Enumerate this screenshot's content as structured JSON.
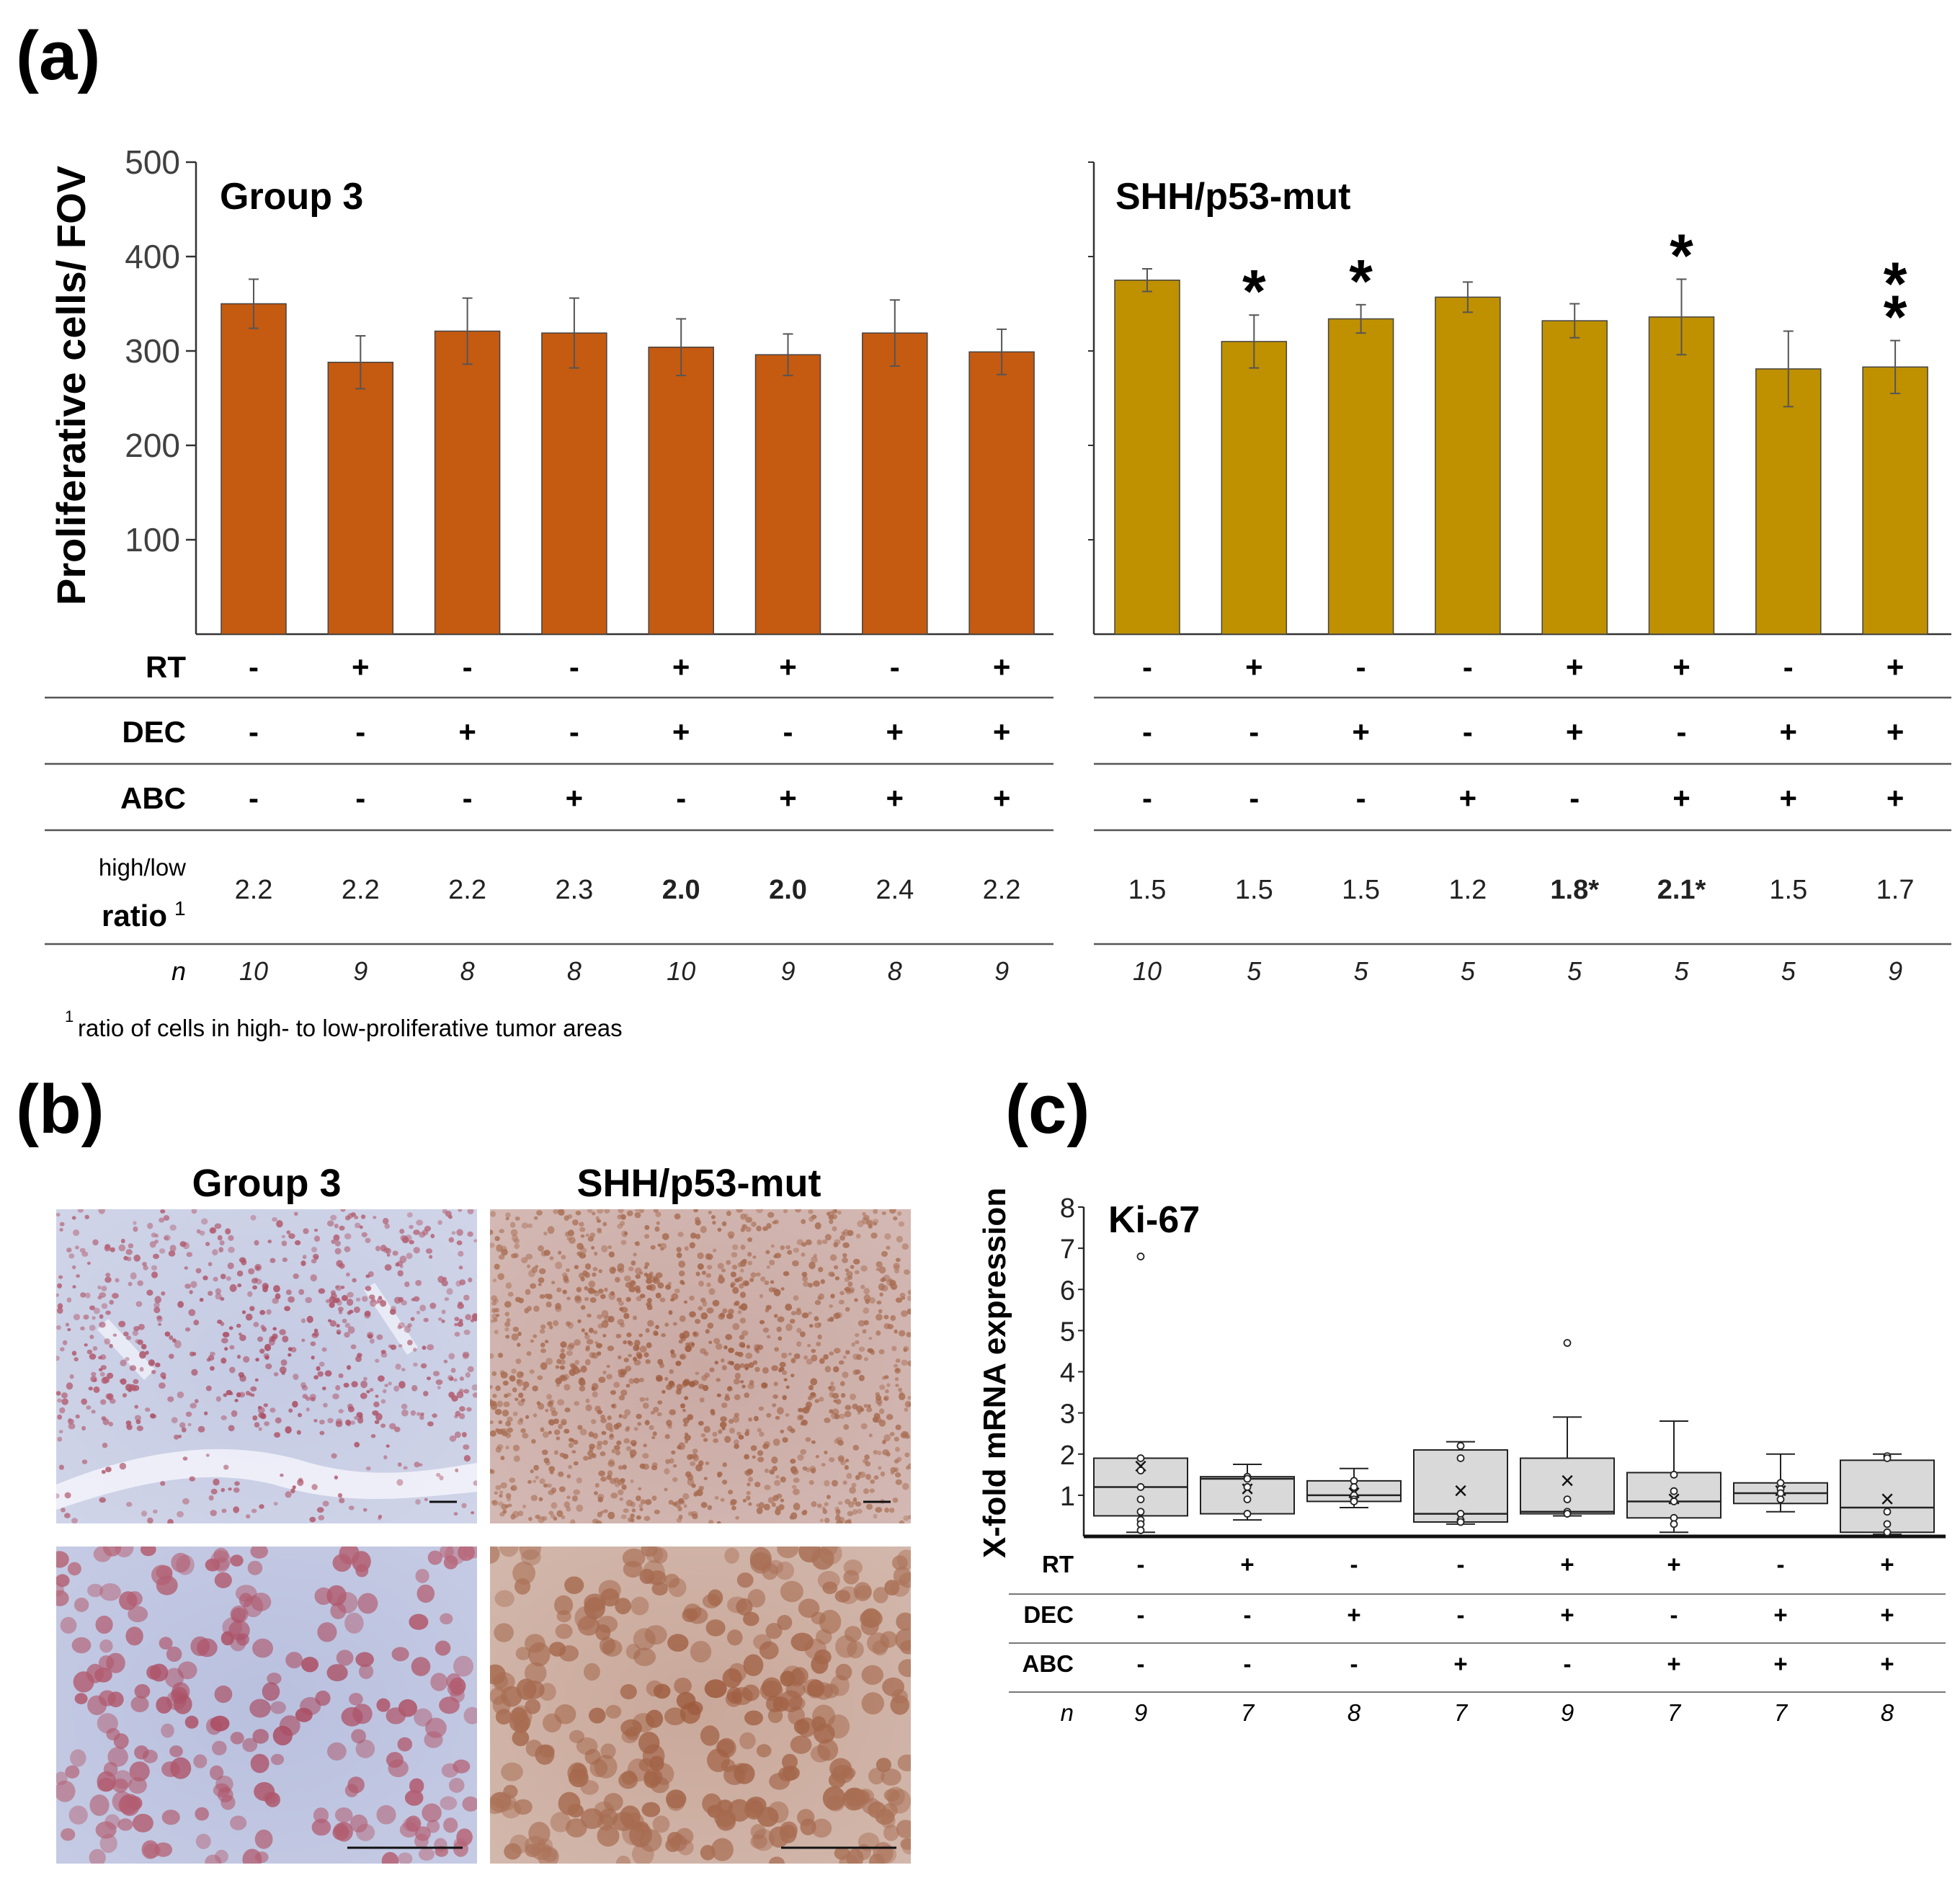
{
  "panels": {
    "a": {
      "label": "(a)",
      "ylabel": "Proliferative cells/ FOV",
      "row_labels": {
        "rt": "RT",
        "dec": "DEC",
        "abc": "ABC",
        "ratio_top": "high/low",
        "ratio_main": "ratio",
        "ratio_sup": "1",
        "n": "n"
      },
      "footnote_sup": "1",
      "footnote": "ratio of cells in high- to low-proliferative tumor areas"
    },
    "b": {
      "label": "(b)",
      "titles": [
        "Group 3",
        "SHH/p53-mut"
      ]
    },
    "c": {
      "label": "(c)",
      "row_labels": {
        "rt": "RT",
        "dec": "DEC",
        "abc": "ABC",
        "n": "n"
      }
    }
  },
  "colors": {
    "group3_bar": "#c55a11",
    "shh_bar": "#bf9000",
    "box_fill": "#d9d9d9",
    "tissue_blue": "#b7bfdd",
    "stain_red": "#a8485e",
    "stain_brown": "#9c5a3c"
  },
  "chart_data": [
    {
      "type": "bar",
      "title": "Group 3",
      "ylabel": "Proliferative cells/ FOV",
      "ylim": [
        0,
        500
      ],
      "yticks": [
        100,
        200,
        300,
        400,
        500
      ],
      "values": [
        350,
        288,
        321,
        319,
        304,
        296,
        319,
        299
      ],
      "errors": [
        26,
        28,
        35,
        37,
        30,
        22,
        35,
        24
      ],
      "significance": [
        "",
        "",
        "",
        "",
        "",
        "",
        "",
        ""
      ],
      "rt": [
        "-",
        "+",
        "-",
        "-",
        "+",
        "+",
        "-",
        "+"
      ],
      "dec": [
        "-",
        "-",
        "+",
        "-",
        "+",
        "-",
        "+",
        "+"
      ],
      "abc": [
        "-",
        "-",
        "-",
        "+",
        "-",
        "+",
        "+",
        "+"
      ],
      "ratio": [
        "2.2",
        "2.2",
        "2.2",
        "2.3",
        "2.0",
        "2.0",
        "2.4",
        "2.2"
      ],
      "ratio_bold": [
        false,
        false,
        false,
        false,
        true,
        true,
        false,
        false
      ],
      "n": [
        "10",
        "9",
        "8",
        "8",
        "10",
        "9",
        "8",
        "9"
      ]
    },
    {
      "type": "bar",
      "title": "SHH/p53-mut",
      "ylim": [
        0,
        500
      ],
      "values": [
        375,
        310,
        334,
        357,
        332,
        336,
        281,
        283
      ],
      "errors": [
        12,
        28,
        15,
        16,
        18,
        40,
        40,
        28
      ],
      "significance": [
        "",
        "*",
        "*",
        "",
        "",
        "*",
        "",
        "**"
      ],
      "rt": [
        "-",
        "+",
        "-",
        "-",
        "+",
        "+",
        "-",
        "+"
      ],
      "dec": [
        "-",
        "-",
        "+",
        "-",
        "+",
        "-",
        "+",
        "+"
      ],
      "abc": [
        "-",
        "-",
        "-",
        "+",
        "-",
        "+",
        "+",
        "+"
      ],
      "ratio": [
        "1.5",
        "1.5",
        "1.5",
        "1.2",
        "1.8*",
        "2.1*",
        "1.5",
        "1.7"
      ],
      "ratio_bold": [
        false,
        false,
        false,
        false,
        true,
        true,
        false,
        false
      ],
      "n": [
        "10",
        "5",
        "5",
        "5",
        "5",
        "5",
        "5",
        "9"
      ]
    },
    {
      "type": "box",
      "title": "Ki-67",
      "ylabel": "X-fold mRNA expression",
      "ylim": [
        0,
        8
      ],
      "yticks": [
        1,
        2,
        3,
        4,
        5,
        6,
        7,
        8
      ],
      "boxes": [
        {
          "q1": 0.5,
          "median": 1.2,
          "q3": 1.9,
          "mean": 1.7,
          "whisker_low": 0.1,
          "whisker_high": 1.9,
          "points": [
            6.8,
            1.9,
            1.6,
            1.2,
            0.9,
            0.6,
            0.4,
            0.3,
            0.15
          ]
        },
        {
          "q1": 0.55,
          "median": 1.4,
          "q3": 1.45,
          "mean": 1.15,
          "whisker_low": 0.4,
          "whisker_high": 1.75,
          "points": [
            1.45,
            1.4,
            1.2,
            0.9,
            0.55
          ]
        },
        {
          "q1": 0.85,
          "median": 1.0,
          "q3": 1.35,
          "mean": 1.05,
          "whisker_low": 0.7,
          "whisker_high": 1.65,
          "points": [
            1.35,
            1.2,
            1.0,
            0.9,
            0.85
          ]
        },
        {
          "q1": 0.35,
          "median": 0.55,
          "q3": 2.1,
          "mean": 1.1,
          "whisker_low": 0.3,
          "whisker_high": 2.3,
          "points": [
            2.2,
            1.9,
            0.55,
            0.4,
            0.35
          ]
        },
        {
          "q1": 0.55,
          "median": 0.6,
          "q3": 1.9,
          "mean": 1.35,
          "whisker_low": 0.5,
          "whisker_high": 2.9,
          "points": [
            4.7,
            0.9,
            0.6,
            0.55
          ]
        },
        {
          "q1": 0.45,
          "median": 0.85,
          "q3": 1.55,
          "mean": 0.9,
          "whisker_low": 0.1,
          "whisker_high": 2.8,
          "points": [
            1.5,
            1.1,
            0.85,
            0.45,
            0.3
          ]
        },
        {
          "q1": 0.8,
          "median": 1.05,
          "q3": 1.3,
          "mean": 1.1,
          "whisker_low": 0.6,
          "whisker_high": 2.0,
          "points": [
            1.3,
            1.15,
            1.05,
            0.9
          ]
        },
        {
          "q1": 0.1,
          "median": 0.7,
          "q3": 1.85,
          "mean": 0.9,
          "whisker_low": 0.05,
          "whisker_high": 2.0,
          "points": [
            1.95,
            1.9,
            0.6,
            0.3,
            0.1
          ]
        }
      ],
      "rt": [
        "-",
        "+",
        "-",
        "-",
        "+",
        "+",
        "-",
        "+"
      ],
      "dec": [
        "-",
        "-",
        "+",
        "-",
        "+",
        "-",
        "+",
        "+"
      ],
      "abc": [
        "-",
        "-",
        "-",
        "+",
        "-",
        "+",
        "+",
        "+"
      ],
      "n": [
        "9",
        "7",
        "8",
        "7",
        "9",
        "7",
        "7",
        "8"
      ]
    }
  ]
}
